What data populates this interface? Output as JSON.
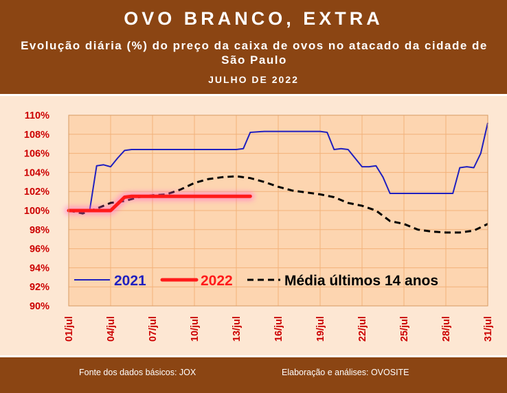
{
  "header": {
    "title": "OVO BRANCO, EXTRA",
    "subtitle": "Evolução diária (%) do preço da caixa de ovos no atacado da cidade de São Paulo",
    "period": "JULHO  DE 2022"
  },
  "footer": {
    "source": "Fonte dos dados básicos: JOX",
    "credit": "Elaboração e análises: OVOSITE"
  },
  "colors": {
    "header_bg": "#8b4513",
    "plot_bg": "#fdd5b0",
    "page_bg": "#fde7d3",
    "series_2021": "#1f1fbf",
    "series_2022": "#ff1a1a",
    "series_avg": "#000000",
    "tick_labels": "#cc0000",
    "grid": "#f2b27a"
  },
  "chart_data": {
    "type": "line",
    "ylim": [
      90,
      110
    ],
    "yticks": [
      "90%",
      "92%",
      "94%",
      "96%",
      "98%",
      "100%",
      "102%",
      "104%",
      "106%",
      "108%",
      "110%"
    ],
    "xlim": [
      1,
      31
    ],
    "xticks": [
      "01/jul",
      "04/jul",
      "07/jul",
      "10/jul",
      "13/jul",
      "16/jul",
      "19/jul",
      "22/jul",
      "25/jul",
      "28/jul",
      "31/jul"
    ],
    "grid": true,
    "legend": "inside-bottom",
    "series": [
      {
        "name": "2021",
        "x": [
          1,
          2,
          2.5,
          3,
          3.5,
          4,
          4.5,
          5,
          5.5,
          6,
          7,
          8,
          9,
          10,
          11,
          12,
          13,
          13.5,
          14,
          15,
          16,
          17,
          18,
          19,
          19.5,
          20,
          20.5,
          21,
          22,
          22.5,
          23,
          23.5,
          24,
          25,
          26,
          27,
          28,
          28.5,
          29,
          29.5,
          30,
          30.5,
          31
        ],
        "values": [
          100.0,
          100.0,
          100.0,
          104.7,
          104.8,
          104.6,
          105.5,
          106.3,
          106.4,
          106.4,
          106.4,
          106.4,
          106.4,
          106.4,
          106.4,
          106.4,
          106.4,
          106.5,
          108.2,
          108.3,
          108.3,
          108.3,
          108.3,
          108.3,
          108.2,
          106.4,
          106.5,
          106.4,
          104.6,
          104.6,
          104.7,
          103.5,
          101.8,
          101.8,
          101.8,
          101.8,
          101.8,
          101.8,
          104.5,
          104.6,
          104.5,
          106.0,
          109.2
        ]
      },
      {
        "name": "2022",
        "x": [
          1,
          1.5,
          2,
          2.5,
          3,
          3.5,
          4,
          4.5,
          5,
          5.5,
          6,
          7,
          8,
          9,
          10,
          11,
          12,
          13,
          14
        ],
        "values": [
          100.0,
          100.0,
          100.0,
          100.0,
          100.0,
          100.0,
          100.0,
          100.7,
          101.4,
          101.5,
          101.5,
          101.5,
          101.5,
          101.5,
          101.5,
          101.5,
          101.5,
          101.5,
          101.5
        ]
      },
      {
        "name": "Média últimos 14 anos",
        "x": [
          1,
          2,
          3,
          4,
          5,
          6,
          7,
          8,
          9,
          10,
          11,
          12,
          13,
          14,
          15,
          16,
          17,
          18,
          19,
          20,
          21,
          22,
          23,
          24,
          25,
          26,
          27,
          28,
          29,
          30,
          31
        ],
        "values": [
          100.0,
          99.7,
          100.2,
          100.8,
          101.0,
          101.4,
          101.6,
          101.7,
          102.2,
          102.9,
          103.3,
          103.5,
          103.6,
          103.4,
          103.0,
          102.5,
          102.1,
          101.9,
          101.7,
          101.4,
          100.8,
          100.5,
          100.0,
          98.9,
          98.6,
          98.0,
          97.8,
          97.7,
          97.7,
          97.9,
          98.6
        ]
      }
    ]
  }
}
